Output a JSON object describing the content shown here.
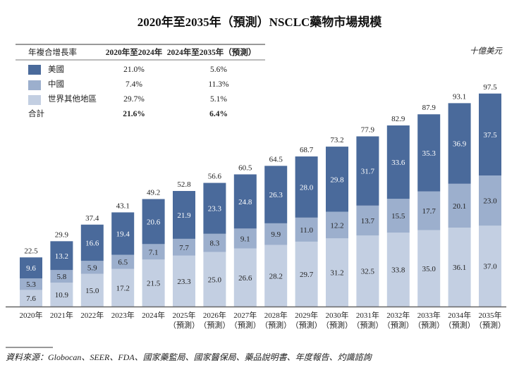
{
  "chart_data": {
    "type": "bar",
    "stacked": true,
    "title": "2020年至2035年（預測）NSCLC藥物市場規模",
    "unit": "十億美元",
    "categories": [
      "2020年",
      "2021年",
      "2022年",
      "2023年",
      "2024年",
      "2025年",
      "2026年",
      "2027年",
      "2028年",
      "2029年",
      "2030年",
      "2031年",
      "2032年",
      "2033年",
      "2034年",
      "2035年"
    ],
    "forecast_label": "（預測）",
    "forecast_from_index": 5,
    "series": [
      {
        "name": "世界其他地區",
        "color": "#c3cfe2",
        "label_color": "#222222",
        "values": [
          7.6,
          10.9,
          15.0,
          17.2,
          21.5,
          23.3,
          25.0,
          26.6,
          28.2,
          29.7,
          31.2,
          32.5,
          33.8,
          35.0,
          36.1,
          37.0
        ]
      },
      {
        "name": "中國",
        "color": "#9cafcd",
        "label_color": "#222222",
        "values": [
          5.3,
          5.8,
          5.9,
          6.5,
          7.1,
          7.7,
          8.3,
          9.1,
          9.9,
          11.0,
          12.2,
          13.7,
          15.5,
          17.7,
          20.1,
          23.0
        ]
      },
      {
        "name": "美國",
        "color": "#4a6a9b",
        "label_color": "#ffffff",
        "values": [
          9.6,
          13.2,
          16.6,
          19.4,
          20.6,
          21.9,
          23.3,
          24.8,
          26.3,
          28.0,
          29.8,
          31.7,
          33.6,
          35.3,
          36.9,
          37.5
        ]
      }
    ],
    "totals": [
      "22.5",
      "29.9",
      "37.4",
      "43.1",
      "49.2",
      "52.8",
      "56.6",
      "60.5",
      "64.5",
      "68.7",
      "73.2",
      "77.9",
      "82.9",
      "87.9",
      "93.1",
      "97.5"
    ],
    "ylim": [
      0,
      100
    ],
    "grid": false
  },
  "cagr_table": {
    "header": [
      "年複合增長率",
      "2020年至2024年",
      "2024年至2035年（預測）"
    ],
    "rows": [
      {
        "label": "美國",
        "color": "#4a6a9b",
        "a": "21.0%",
        "b": "5.6%"
      },
      {
        "label": "中國",
        "color": "#9cafcd",
        "a": "7.4%",
        "b": "11.3%"
      },
      {
        "label": "世界其他地區",
        "color": "#c3cfe2",
        "a": "29.7%",
        "b": "5.1%"
      }
    ],
    "total": {
      "label": "合計",
      "a": "21.6%",
      "b": "6.4%"
    }
  },
  "source": "資料來源：Globocan、SEER、FDA、國家藥監局、國家醫保局、藥品說明書、年度報告、灼識諮詢"
}
